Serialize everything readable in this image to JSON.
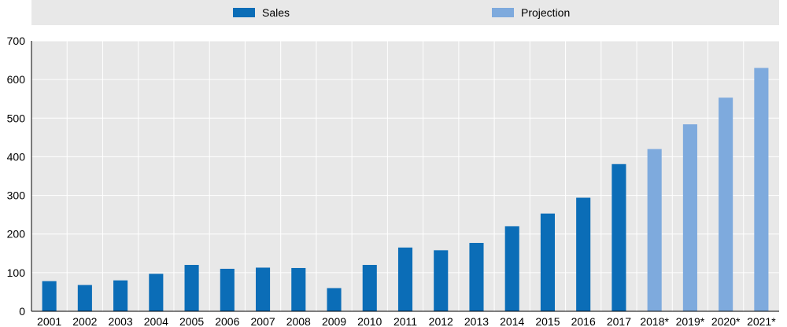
{
  "chart_data": {
    "type": "bar",
    "title": "",
    "xlabel": "",
    "ylabel": "",
    "ylim": [
      0,
      700
    ],
    "yticks": [
      0,
      100,
      200,
      300,
      400,
      500,
      600,
      700
    ],
    "ytick_labels": [
      "0",
      "100",
      "200",
      "300",
      "400",
      "500",
      "600",
      "700"
    ],
    "grid": true,
    "legend_position": "top",
    "categories": [
      "2001",
      "2002",
      "2003",
      "2004",
      "2005",
      "2006",
      "2007",
      "2008",
      "2009",
      "2010",
      "2011",
      "2012",
      "2013",
      "2014",
      "2015",
      "2016",
      "2017",
      "2018*",
      "2019*",
      "2020*",
      "2021*"
    ],
    "series": [
      {
        "name": "Sales",
        "color": "#0b6db7",
        "values": [
          78,
          68,
          80,
          97,
          120,
          110,
          113,
          112,
          60,
          120,
          165,
          158,
          177,
          220,
          253,
          294,
          381,
          null,
          null,
          null,
          null
        ]
      },
      {
        "name": "Projection",
        "color": "#7eaadd",
        "values": [
          null,
          null,
          null,
          null,
          null,
          null,
          null,
          null,
          null,
          null,
          null,
          null,
          null,
          null,
          null,
          null,
          null,
          420,
          484,
          553,
          630
        ]
      }
    ]
  }
}
